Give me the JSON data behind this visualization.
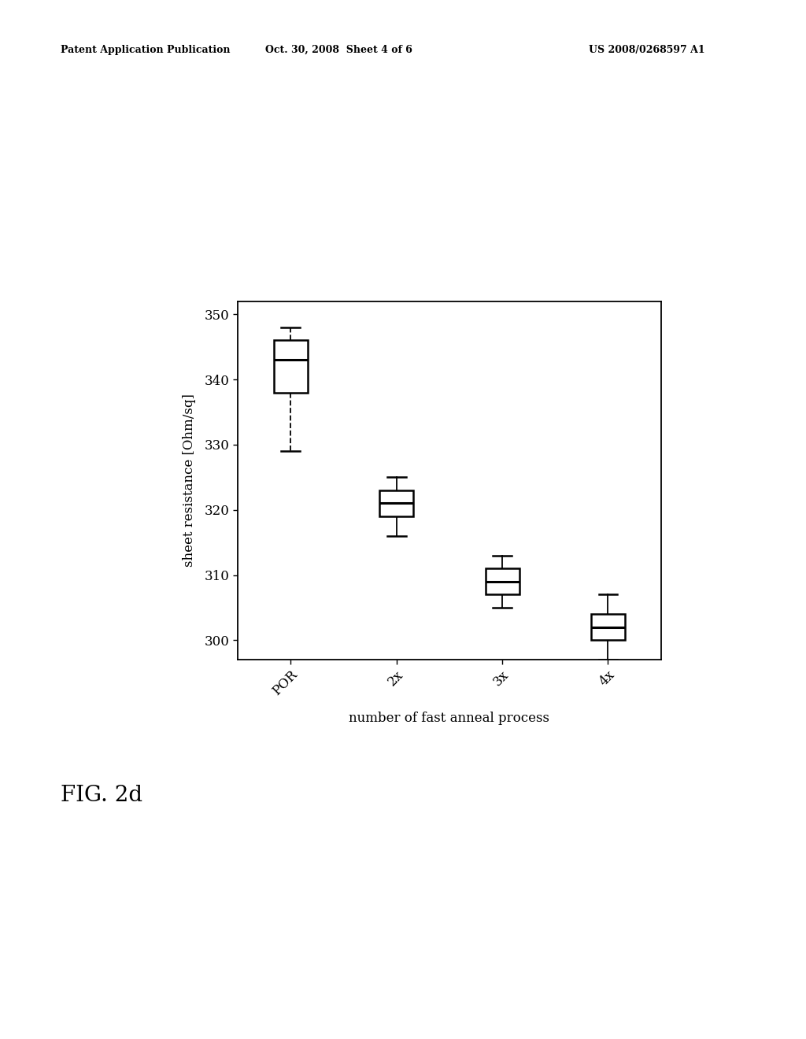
{
  "categories": [
    "POR",
    "2x",
    "3x",
    "4x"
  ],
  "boxes": [
    {
      "q1": 338,
      "median": 343,
      "q3": 346,
      "whisker_low": 329,
      "whisker_high": 348
    },
    {
      "q1": 319,
      "median": 321,
      "q3": 323,
      "whisker_low": 316,
      "whisker_high": 325
    },
    {
      "q1": 307,
      "median": 309,
      "q3": 311,
      "whisker_low": 305,
      "whisker_high": 313
    },
    {
      "q1": 300,
      "median": 302,
      "q3": 304,
      "whisker_low": 297,
      "whisker_high": 307
    }
  ],
  "ylabel": "sheet resistance [Ohm/sq]",
  "xlabel": "number of fast anneal process",
  "ylim": [
    297,
    352
  ],
  "yticks": [
    300,
    310,
    320,
    330,
    340,
    350
  ],
  "fig_label": "FIG. 2d",
  "header_left": "Patent Application Publication",
  "header_center": "Oct. 30, 2008  Sheet 4 of 6",
  "header_right": "US 2008/0268597 A1",
  "background_color": "#ffffff",
  "box_color": "#ffffff",
  "box_edge_color": "#000000",
  "whisker_color": "#000000",
  "median_color": "#000000"
}
